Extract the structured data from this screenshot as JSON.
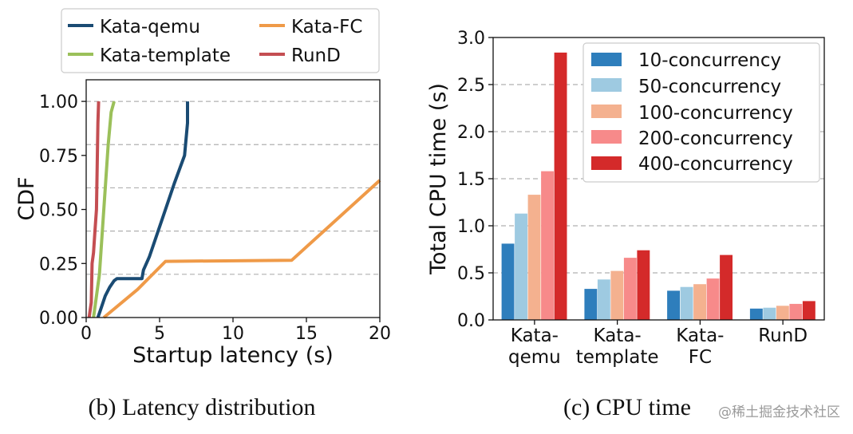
{
  "chart_data": [
    {
      "type": "line",
      "subtitle": "(b)  Latency distribution",
      "xlabel": "Startup latency (s)",
      "ylabel": "CDF",
      "xlim": [
        0,
        20
      ],
      "ylim": [
        0,
        1.1
      ],
      "xticks": [
        0,
        5,
        10,
        15,
        20
      ],
      "xtick_labels": [
        "0",
        "5",
        "10",
        "15",
        "20"
      ],
      "yticks": [
        0,
        0.25,
        0.5,
        0.75,
        1.0
      ],
      "ytick_labels": [
        "0.00",
        "0.25",
        "0.50",
        "0.75",
        "1.00"
      ],
      "gridlines_y": [
        0.2,
        0.4,
        0.6,
        0.8,
        1.0
      ],
      "legend_position": "top, outside",
      "series": [
        {
          "name": "Kata-qemu",
          "color": "#1a4b73",
          "points": [
            [
              0.8,
              0
            ],
            [
              1.0,
              0.04
            ],
            [
              1.3,
              0.1
            ],
            [
              1.6,
              0.14
            ],
            [
              1.9,
              0.17
            ],
            [
              2.1,
              0.18
            ],
            [
              3.2,
              0.18
            ],
            [
              3.8,
              0.18
            ],
            [
              3.9,
              0.22
            ],
            [
              4.3,
              0.28
            ],
            [
              4.8,
              0.38
            ],
            [
              5.4,
              0.5
            ],
            [
              6.0,
              0.62
            ],
            [
              6.7,
              0.75
            ],
            [
              6.9,
              0.9
            ],
            [
              6.9,
              1.0
            ]
          ]
        },
        {
          "name": "Kata-FC",
          "color": "#ef9a48",
          "points": [
            [
              1.2,
              0
            ],
            [
              3.5,
              0.13
            ],
            [
              5.4,
              0.26
            ],
            [
              14.0,
              0.265
            ],
            [
              17.0,
              0.45
            ],
            [
              20.0,
              0.635
            ]
          ]
        },
        {
          "name": "Kata-template",
          "color": "#9bc05a",
          "points": [
            [
              0.5,
              0
            ],
            [
              0.9,
              0.2
            ],
            [
              1.2,
              0.5
            ],
            [
              1.5,
              0.8
            ],
            [
              1.7,
              0.95
            ],
            [
              1.9,
              1.0
            ]
          ]
        },
        {
          "name": "RunD",
          "color": "#c44e52",
          "points": [
            [
              0.2,
              0
            ],
            [
              0.35,
              0.07
            ],
            [
              0.4,
              0.25
            ],
            [
              0.5,
              0.3
            ],
            [
              0.6,
              0.4
            ],
            [
              0.7,
              0.5
            ],
            [
              0.75,
              0.7
            ],
            [
              0.8,
              0.9
            ],
            [
              0.85,
              1.0
            ]
          ]
        }
      ]
    },
    {
      "type": "bar",
      "subtitle": "(c)  CPU time",
      "xlabel": "",
      "ylabel": "Total CPU time (s)",
      "ylim": [
        0,
        3.0
      ],
      "yticks": [
        0,
        0.5,
        1.0,
        1.5,
        2.0,
        2.5,
        3.0
      ],
      "ytick_labels": [
        "0.0",
        "0.5",
        "1.0",
        "1.5",
        "2.0",
        "2.5",
        "3.0"
      ],
      "gridlines_y": [
        0.5,
        1.0,
        1.5,
        2.0,
        2.5
      ],
      "categories": [
        {
          "line1": "Kata-",
          "line2": "qemu"
        },
        {
          "line1": "Kata-",
          "line2": "template"
        },
        {
          "line1": "Kata-",
          "line2": "FC"
        },
        {
          "line1": "RunD",
          "line2": ""
        }
      ],
      "legend_position": "top-right",
      "series": [
        {
          "name": "10-concurrency",
          "color": "#2e7ebc",
          "values": [
            0.81,
            0.33,
            0.31,
            0.12
          ]
        },
        {
          "name": "50-concurrency",
          "color": "#9ecae1",
          "values": [
            1.13,
            0.43,
            0.35,
            0.13
          ]
        },
        {
          "name": "100-concurrency",
          "color": "#f4b18f",
          "values": [
            1.33,
            0.52,
            0.38,
            0.15
          ]
        },
        {
          "name": "200-concurrency",
          "color": "#f78a8a",
          "values": [
            1.58,
            0.66,
            0.44,
            0.17
          ]
        },
        {
          "name": "400-concurrency",
          "color": "#d42a2a",
          "values": [
            2.84,
            0.74,
            0.69,
            0.2
          ]
        }
      ]
    }
  ],
  "watermark": "@稀土掘金技术社区"
}
